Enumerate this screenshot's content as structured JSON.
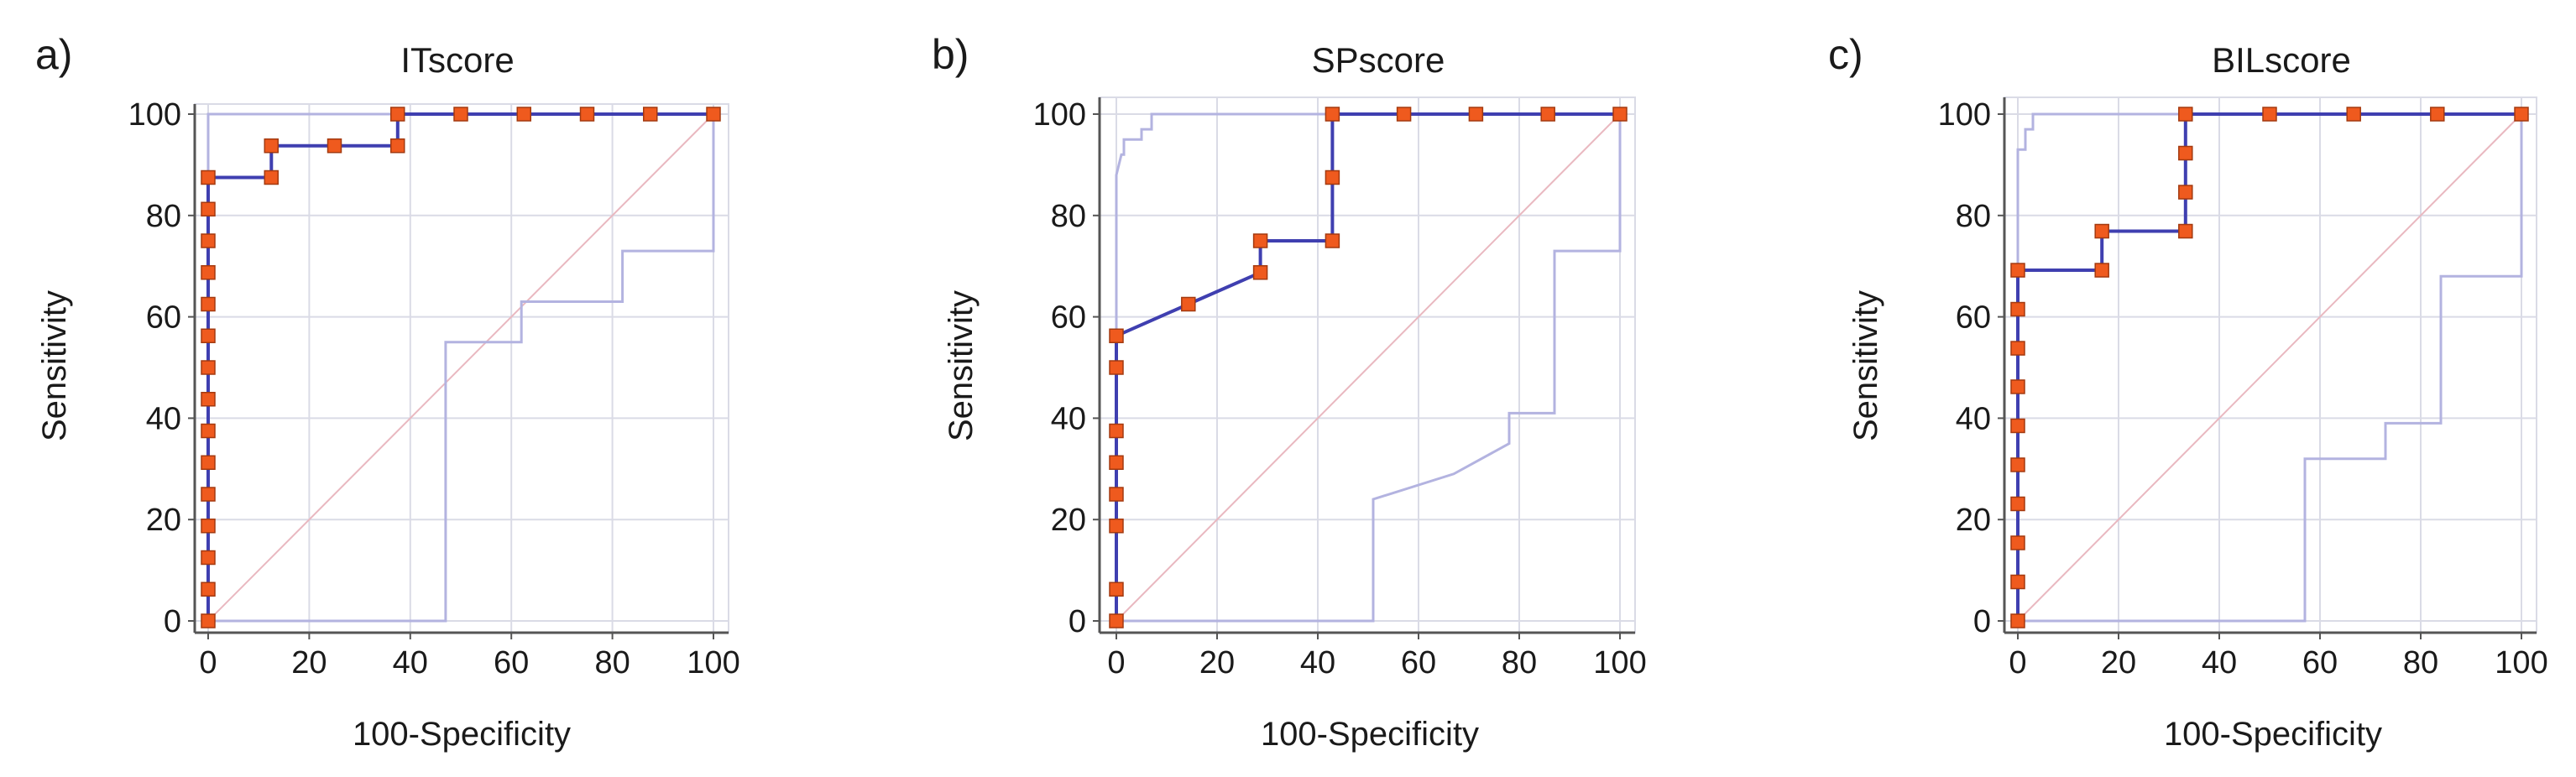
{
  "figure": {
    "panels": [
      "a",
      "b",
      "c"
    ]
  },
  "colors": {
    "background": "#ffffff",
    "grid": "#dadbe6",
    "axis": "#555555",
    "roc_line": "#3f3fb0",
    "marker_fill": "#ef5a1e",
    "marker_stroke": "#a33a10",
    "ci_band": "#b3b3e0",
    "diagonal": "#e9b8c0"
  },
  "chart_data": [
    {
      "type": "line",
      "panel_label": "a)",
      "title": "ITscore",
      "xlabel": "100-Specificity",
      "ylabel": "Sensitivity",
      "xlim": [
        0,
        100
      ],
      "ylim": [
        0,
        100
      ],
      "xticks": [
        0,
        20,
        40,
        60,
        80,
        100
      ],
      "yticks": [
        0,
        20,
        40,
        60,
        80,
        100
      ],
      "grid": true,
      "series": [
        {
          "name": "ROC curve",
          "role": "roc",
          "x": [
            0,
            0,
            0,
            0,
            0,
            0,
            0,
            0,
            0,
            0,
            0,
            0,
            0,
            0,
            0,
            0,
            0,
            12.5,
            12.5,
            25,
            37.5,
            37.5,
            50,
            62.5,
            75,
            87.5,
            100
          ],
          "y": [
            0,
            6.25,
            12.5,
            18.75,
            25,
            31.25,
            37.5,
            43.75,
            50,
            56.25,
            62.5,
            68.75,
            75,
            81.25,
            87.5,
            87.5,
            87.5,
            87.5,
            93.75,
            93.75,
            93.75,
            100,
            100,
            100,
            100,
            100,
            100
          ],
          "markers": [
            true,
            true,
            true,
            true,
            true,
            true,
            true,
            true,
            true,
            true,
            true,
            true,
            true,
            true,
            true,
            false,
            false,
            true,
            true,
            true,
            true,
            true,
            true,
            true,
            true,
            true,
            true
          ]
        },
        {
          "name": "Upper 95% CI",
          "role": "ci",
          "x": [
            0,
            0,
            100
          ],
          "y": [
            0,
            100,
            100
          ]
        },
        {
          "name": "Lower 95% CI",
          "role": "ci",
          "x": [
            0,
            47,
            47,
            62,
            62,
            82,
            82,
            100,
            100
          ],
          "y": [
            0,
            0,
            55,
            55,
            63,
            63,
            73,
            73,
            100
          ]
        },
        {
          "name": "Reference line",
          "role": "diagonal",
          "x": [
            0,
            100
          ],
          "y": [
            0,
            100
          ]
        }
      ]
    },
    {
      "type": "line",
      "panel_label": "b)",
      "title": "SPscore",
      "xlabel": "100-Specificity",
      "ylabel": "Sensitivity",
      "xlim": [
        0,
        100
      ],
      "ylim": [
        0,
        100
      ],
      "xticks": [
        0,
        20,
        40,
        60,
        80,
        100
      ],
      "yticks": [
        0,
        20,
        40,
        60,
        80,
        100
      ],
      "grid": true,
      "series": [
        {
          "name": "ROC curve",
          "role": "roc",
          "x": [
            0,
            0,
            0,
            0,
            0,
            0,
            0,
            0,
            0,
            14.3,
            28.6,
            28.6,
            42.9,
            42.9,
            42.9,
            57.1,
            71.4,
            85.7,
            100
          ],
          "y": [
            0,
            6.25,
            18.75,
            25,
            31.25,
            37.5,
            50,
            56.25,
            56.25,
            62.5,
            68.75,
            75,
            75,
            87.5,
            100,
            100,
            100,
            100,
            100
          ],
          "markers": [
            true,
            true,
            true,
            true,
            true,
            true,
            true,
            true,
            false,
            true,
            true,
            true,
            true,
            true,
            true,
            true,
            true,
            true,
            true
          ]
        },
        {
          "name": "Upper 95% CI",
          "role": "ci",
          "x": [
            0,
            0,
            1,
            1.5,
            1.5,
            5,
            5,
            7,
            7,
            100
          ],
          "y": [
            0,
            88,
            92,
            92,
            95,
            95,
            97,
            97,
            100,
            100
          ]
        },
        {
          "name": "Lower 95% CI",
          "role": "ci",
          "x": [
            0,
            51,
            51,
            67,
            78,
            78,
            87,
            87,
            100,
            100
          ],
          "y": [
            0,
            0,
            24,
            29,
            35,
            41,
            41,
            73,
            73,
            100
          ]
        },
        {
          "name": "Reference line",
          "role": "diagonal",
          "x": [
            0,
            100
          ],
          "y": [
            0,
            100
          ]
        }
      ]
    },
    {
      "type": "line",
      "panel_label": "c)",
      "title": "BILscore",
      "xlabel": "100-Specificity",
      "ylabel": "Sensitivity",
      "xlim": [
        0,
        100
      ],
      "ylim": [
        0,
        100
      ],
      "xticks": [
        0,
        20,
        40,
        60,
        80,
        100
      ],
      "yticks": [
        0,
        20,
        40,
        60,
        80,
        100
      ],
      "grid": true,
      "series": [
        {
          "name": "ROC curve",
          "role": "roc",
          "x": [
            0,
            0,
            0,
            0,
            0,
            0,
            0,
            0,
            0,
            0,
            0,
            16.7,
            16.7,
            33.3,
            33.3,
            33.3,
            33.3,
            50,
            66.7,
            83.3,
            100
          ],
          "y": [
            0,
            7.7,
            15.4,
            23.1,
            30.8,
            38.5,
            46.2,
            53.8,
            61.5,
            69.2,
            69.2,
            69.2,
            76.9,
            76.9,
            84.6,
            92.3,
            100,
            100,
            100,
            100,
            100
          ],
          "markers": [
            true,
            true,
            true,
            true,
            true,
            true,
            true,
            true,
            true,
            true,
            false,
            true,
            true,
            true,
            true,
            true,
            true,
            true,
            true,
            true,
            true
          ]
        },
        {
          "name": "Upper 95% CI",
          "role": "ci",
          "x": [
            0,
            0,
            1.5,
            1.5,
            3,
            3,
            100
          ],
          "y": [
            0,
            93,
            93,
            97,
            97,
            100,
            100
          ]
        },
        {
          "name": "Lower 95% CI",
          "role": "ci",
          "x": [
            0,
            57,
            57,
            73,
            73,
            84,
            84,
            100,
            100
          ],
          "y": [
            0,
            0,
            32,
            32,
            39,
            39,
            68,
            68,
            100
          ]
        },
        {
          "name": "Reference line",
          "role": "diagonal",
          "x": [
            0,
            100
          ],
          "y": [
            0,
            100
          ]
        }
      ]
    }
  ]
}
